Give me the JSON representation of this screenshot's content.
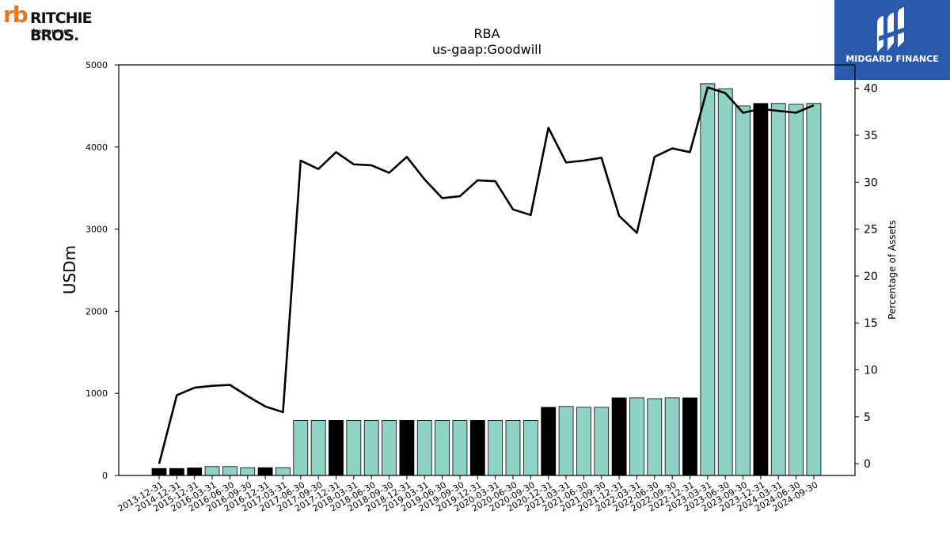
{
  "logos": {
    "left": {
      "mark": "rb",
      "brand": "RITCHIE BROS.",
      "sub": "Auctioneers"
    },
    "right": {
      "text": "MIDGARD FINANCE"
    }
  },
  "chart_data": {
    "type": "bar",
    "title": "RBA",
    "subtitle": "us-gaap:Goodwill",
    "ylabel": "USDm",
    "y2label": "Percentage of Assets",
    "ylim": [
      0,
      5000
    ],
    "y2lim": [
      -1.25,
      42.5
    ],
    "yticks": [
      0,
      1000,
      2000,
      3000,
      4000,
      5000
    ],
    "y2ticks": [
      0,
      5,
      10,
      15,
      20,
      25,
      30,
      35,
      40
    ],
    "categories": [
      "2013-12-31",
      "2014-12-31",
      "2015-12-31",
      "2016-03-31",
      "2016-06-30",
      "2016-09-30",
      "2016-12-31",
      "2017-03-31",
      "2017-06-30",
      "2017-09-30",
      "2017-12-31",
      "2018-03-31",
      "2018-06-30",
      "2018-09-30",
      "2018-12-31",
      "2019-03-31",
      "2019-06-30",
      "2019-09-30",
      "2019-12-31",
      "2020-03-31",
      "2020-06-30",
      "2020-09-30",
      "2020-12-31",
      "2021-03-31",
      "2021-06-30",
      "2021-09-30",
      "2021-12-31",
      "2022-03-31",
      "2022-06-30",
      "2022-09-30",
      "2022-12-31",
      "2023-03-31",
      "2023-06-30",
      "2023-09-30",
      "2023-12-31",
      "2024-03-31",
      "2024-06-30",
      "2024-09-30"
    ],
    "series": [
      {
        "type": "bar",
        "axis": "left",
        "values": [
          85,
          85,
          92,
          108,
          108,
          95,
          95,
          95,
          670,
          670,
          670,
          670,
          670,
          670,
          670,
          670,
          670,
          670,
          670,
          670,
          670,
          670,
          830,
          840,
          830,
          830,
          945,
          945,
          935,
          945,
          945,
          4770,
          4710,
          4500,
          4530,
          4530,
          4520,
          4530
        ],
        "highlight": [
          true,
          true,
          true,
          false,
          false,
          false,
          true,
          false,
          false,
          false,
          true,
          false,
          false,
          false,
          true,
          false,
          false,
          false,
          true,
          false,
          false,
          false,
          true,
          false,
          false,
          false,
          true,
          false,
          false,
          false,
          true,
          false,
          false,
          false,
          true,
          false,
          false,
          false
        ]
      },
      {
        "type": "line",
        "axis": "right",
        "values": [
          0,
          7.3,
          8.1,
          8.3,
          8.4,
          7.2,
          6.1,
          5.5,
          32.3,
          31.4,
          33.2,
          31.9,
          31.8,
          31.0,
          32.7,
          30.3,
          28.3,
          28.5,
          30.2,
          30.1,
          27.1,
          26.5,
          35.8,
          32.1,
          32.3,
          32.6,
          26.4,
          24.6,
          32.7,
          33.6,
          33.2,
          40.1,
          39.5,
          37.4,
          37.8,
          37.6,
          37.4,
          38.2
        ]
      }
    ],
    "colors": {
      "bar": "#8fd3c6",
      "bar_highlight": "#000000",
      "line": "#000000"
    },
    "grid": false,
    "legend": "none"
  }
}
